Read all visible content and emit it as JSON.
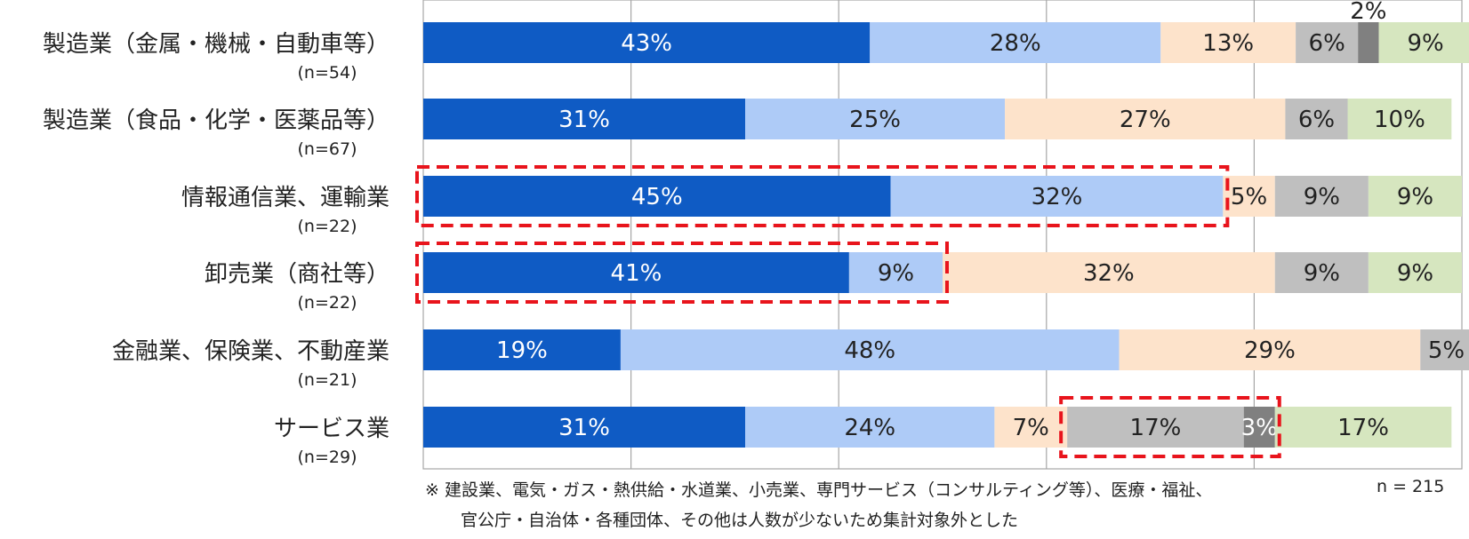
{
  "chart_data": {
    "type": "bar",
    "orientation": "horizontal",
    "stacked": true,
    "xlim": [
      0,
      100
    ],
    "grid": true,
    "legend": "none",
    "categories": [
      "製造業（金属・機械・自動車等）",
      "製造業（食品・化学・医薬品等）",
      "情報通信業、運輸業",
      "卸売業（商社等）",
      "金融業、保険業、不動産業",
      "サービス業"
    ],
    "sample_sizes": [
      "(n=54)",
      "(n=67)",
      "(n=22)",
      "(n=22)",
      "(n=21)",
      "(n=29)"
    ],
    "series": [
      {
        "color": "#0f5bc4",
        "label_color": "#ffffff",
        "values": [
          43,
          31,
          45,
          41,
          19,
          31
        ]
      },
      {
        "color": "#aecbf7",
        "label_color": "#222222",
        "values": [
          28,
          25,
          32,
          9,
          48,
          24
        ]
      },
      {
        "color": "#fde3cb",
        "label_color": "#222222",
        "values": [
          13,
          27,
          5,
          32,
          29,
          7
        ]
      },
      {
        "color": "#bfbfbf",
        "label_color": "#222222",
        "values": [
          6,
          6,
          9,
          9,
          5,
          17
        ]
      },
      {
        "color": "#808080",
        "label_color": "#ffffff",
        "values": [
          2,
          0,
          0,
          0,
          0,
          3
        ]
      },
      {
        "color": "#d6e6bf",
        "label_color": "#222222",
        "values": [
          9,
          10,
          9,
          9,
          0,
          17
        ]
      }
    ],
    "highlights": [
      {
        "row": 2,
        "from_series": 0,
        "to_series": 1
      },
      {
        "row": 3,
        "from_series": 0,
        "to_series": 1
      },
      {
        "row": 5,
        "from_series": 3,
        "to_series": 4
      }
    ],
    "highlight_color": "#e8141c"
  },
  "footnote": {
    "line1": "※ 建設業、電気・ガス・熱供給・水道業、小売業、専門サービス（コンサルティング等）、医療・福祉、",
    "line2": "官公庁・自治体・各種団体、その他は人数が少ないため集計対象外とした",
    "total": "n = 215"
  }
}
